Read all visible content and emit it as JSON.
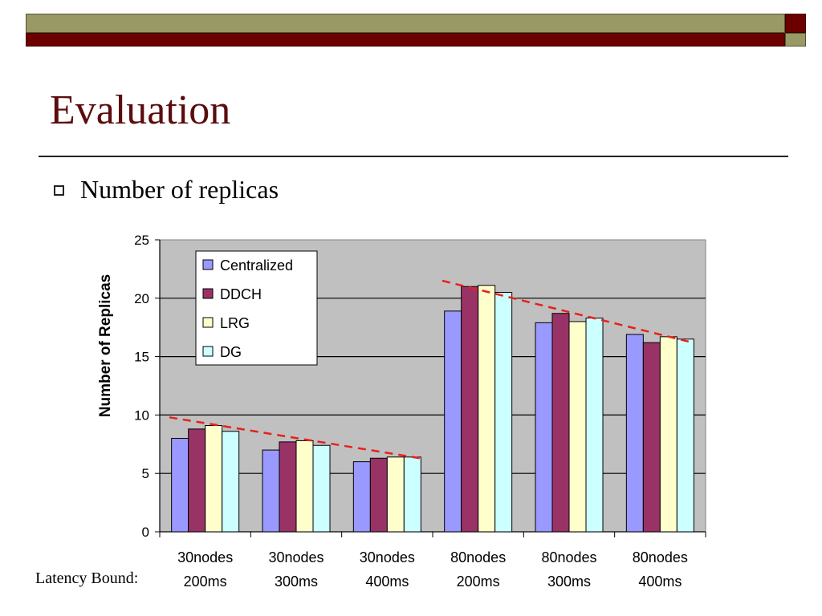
{
  "slide": {
    "title": "Evaluation",
    "bullet": "Number of replicas",
    "footer_label": "Latency Bound:"
  },
  "colors": {
    "olive": "#999966",
    "maroon": "#6b0000",
    "title": "#5b0d0d",
    "plot_bg": "#c0c0c0",
    "trend": "#e8201c"
  },
  "chart_data": {
    "type": "bar",
    "title": "",
    "xlabel": "",
    "ylabel": "Number of Replicas",
    "ylim": [
      0,
      25
    ],
    "yticks": [
      0,
      5,
      10,
      15,
      20,
      25
    ],
    "grid": true,
    "legend_position": "top-left inside plot",
    "categories": [
      [
        "30nodes",
        "200ms"
      ],
      [
        "30nodes",
        "300ms"
      ],
      [
        "30nodes",
        "400ms"
      ],
      [
        "80nodes",
        "200ms"
      ],
      [
        "80nodes",
        "300ms"
      ],
      [
        "80nodes",
        "400ms"
      ]
    ],
    "series": [
      {
        "name": "Centralized",
        "color": "#9999ff",
        "values": [
          8.0,
          7.0,
          6.0,
          18.9,
          17.9,
          16.9
        ]
      },
      {
        "name": "DDCH",
        "color": "#993366",
        "values": [
          8.8,
          7.7,
          6.3,
          21.0,
          18.7,
          16.2
        ]
      },
      {
        "name": "LRG",
        "color": "#ffffcc",
        "values": [
          9.1,
          7.8,
          6.4,
          21.1,
          18.0,
          16.7
        ]
      },
      {
        "name": "DG",
        "color": "#ccffff",
        "values": [
          8.6,
          7.4,
          6.4,
          20.5,
          18.3,
          16.5
        ]
      }
    ],
    "trend_lines": [
      {
        "from": {
          "category": 0,
          "value": 9.8
        },
        "to": {
          "category": 2,
          "value": 6.3
        }
      },
      {
        "from": {
          "category": 3,
          "value": 21.5
        },
        "to": {
          "category": 5,
          "value": 16.2
        }
      }
    ]
  }
}
